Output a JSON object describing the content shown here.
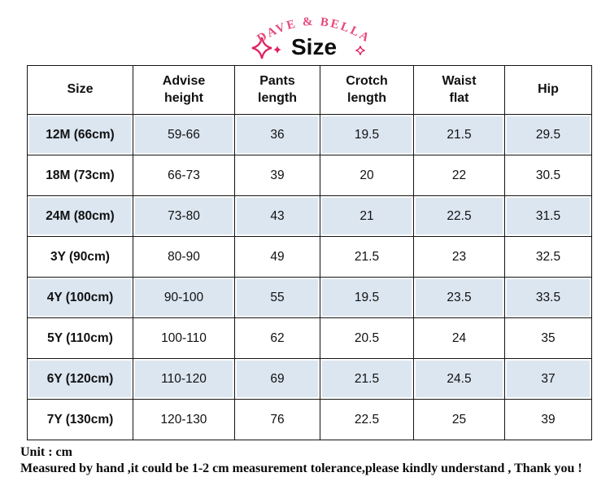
{
  "brand": {
    "name": "DAVE & BELLA",
    "title": "Size"
  },
  "chart_data": {
    "type": "table",
    "columns": [
      "Size",
      "Advise\nheight",
      "Pants\nlength",
      "Crotch\nlength",
      "Waist\nflat",
      "Hip"
    ],
    "rows": [
      [
        "12M (66cm)",
        "59-66",
        "36",
        "19.5",
        "21.5",
        "29.5"
      ],
      [
        "18M (73cm)",
        "66-73",
        "39",
        "20",
        "22",
        "30.5"
      ],
      [
        "24M (80cm)",
        "73-80",
        "43",
        "21",
        "22.5",
        "31.5"
      ],
      [
        "3Y (90cm)",
        "80-90",
        "49",
        "21.5",
        "23",
        "32.5"
      ],
      [
        "4Y (100cm)",
        "90-100",
        "55",
        "19.5",
        "23.5",
        "33.5"
      ],
      [
        "5Y (110cm)",
        "100-110",
        "62",
        "20.5",
        "24",
        "35"
      ],
      [
        "6Y (120cm)",
        "110-120",
        "69",
        "21.5",
        "24.5",
        "37"
      ],
      [
        "7Y (130cm)",
        "120-130",
        "76",
        "22.5",
        "25",
        "39"
      ]
    ],
    "highlighted_rows": [
      0,
      2,
      4,
      6
    ],
    "unit": "cm"
  },
  "footer": {
    "unit_label": "Unit : cm",
    "note": "Measured by hand ,it could be 1-2 cm measurement tolerance,please kindly understand , Thank you !"
  },
  "colors": {
    "brand_pink": "#e7497b",
    "sparkle_pink": "#e0215f",
    "row_highlight": "#dce6f1",
    "border": "#141414"
  }
}
